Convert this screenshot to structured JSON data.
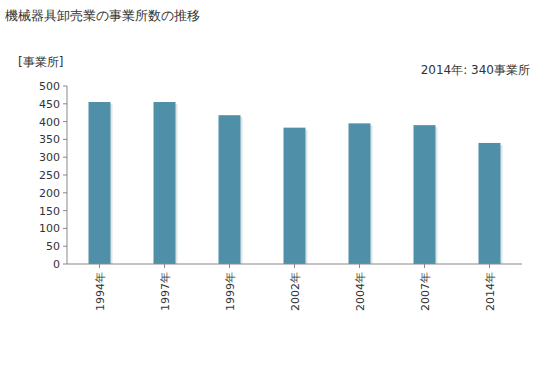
{
  "chart_data": {
    "type": "bar",
    "title": "機械器具卸売業の事業所数の推移",
    "y_label": "[事業所]",
    "annotation": "2014年: 340事業所",
    "categories": [
      "1994年",
      "1997年",
      "1999年",
      "2002年",
      "2004年",
      "2007年",
      "2014年"
    ],
    "values": [
      455,
      455,
      418,
      383,
      395,
      390,
      340
    ],
    "color": "#4f8fa8",
    "ylim": [
      0,
      500
    ],
    "yticks": [
      0,
      50,
      100,
      150,
      200,
      250,
      300,
      350,
      400,
      450,
      500
    ],
    "grid": false
  }
}
